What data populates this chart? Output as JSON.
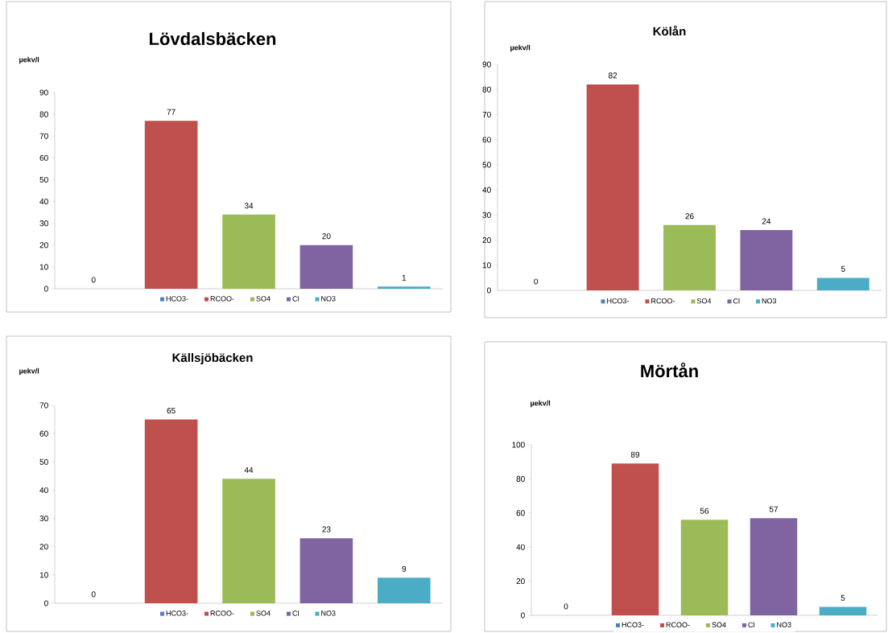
{
  "chart_data": [
    {
      "type": "bar",
      "title": "Lövdalsbäcken",
      "ylabel": "µekv/l",
      "categories": [
        null,
        null,
        null,
        null,
        null
      ],
      "ylim": [
        0,
        90
      ],
      "yticks": [
        0,
        10,
        20,
        30,
        40,
        50,
        60,
        70,
        80,
        90
      ],
      "data_labels": true,
      "legend": "bottom",
      "series": [
        {
          "name": "HCO3-",
          "color": "#4f81bd",
          "values": [
            0,
            null,
            null,
            null,
            null
          ]
        },
        {
          "name": "RCOO-",
          "color": "#c0504d",
          "values": [
            null,
            77,
            null,
            null,
            null
          ]
        },
        {
          "name": "SO4",
          "color": "#9bbb59",
          "values": [
            null,
            null,
            34,
            null,
            null
          ]
        },
        {
          "name": "Cl",
          "color": "#8064a2",
          "values": [
            null,
            null,
            null,
            20,
            null
          ]
        },
        {
          "name": "NO3",
          "color": "#4bacc6",
          "values": [
            null,
            null,
            null,
            null,
            1
          ]
        }
      ]
    },
    {
      "type": "bar",
      "title": "Kölån",
      "ylabel": "µekv/l",
      "categories": [
        null,
        null,
        null,
        null,
        null
      ],
      "ylim": [
        0,
        90
      ],
      "yticks": [
        0,
        10,
        20,
        30,
        40,
        50,
        60,
        70,
        80,
        90
      ],
      "data_labels": true,
      "legend": "bottom",
      "series": [
        {
          "name": "HCO3-",
          "color": "#4f81bd",
          "values": [
            0,
            null,
            null,
            null,
            null
          ]
        },
        {
          "name": "RCOO-",
          "color": "#c0504d",
          "values": [
            null,
            82,
            null,
            null,
            null
          ]
        },
        {
          "name": "SO4",
          "color": "#9bbb59",
          "values": [
            null,
            null,
            26,
            null,
            null
          ]
        },
        {
          "name": "Cl",
          "color": "#8064a2",
          "values": [
            null,
            null,
            null,
            24,
            null
          ]
        },
        {
          "name": "NO3",
          "color": "#4bacc6",
          "values": [
            null,
            null,
            null,
            null,
            5
          ]
        }
      ]
    },
    {
      "type": "bar",
      "title": "Källsjöbäcken",
      "ylabel": "µekv/l",
      "categories": [
        null,
        null,
        null,
        null,
        null
      ],
      "ylim": [
        0,
        70
      ],
      "yticks": [
        0,
        10,
        20,
        30,
        40,
        50,
        60,
        70
      ],
      "data_labels": true,
      "legend": "bottom",
      "series": [
        {
          "name": "HCO3-",
          "color": "#4f81bd",
          "values": [
            0,
            null,
            null,
            null,
            null
          ]
        },
        {
          "name": "RCOO-",
          "color": "#c0504d",
          "values": [
            null,
            65,
            null,
            null,
            null
          ]
        },
        {
          "name": "SO4",
          "color": "#9bbb59",
          "values": [
            null,
            null,
            44,
            null,
            null
          ]
        },
        {
          "name": "Cl",
          "color": "#8064a2",
          "values": [
            null,
            null,
            null,
            23,
            null
          ]
        },
        {
          "name": "NO3",
          "color": "#4bacc6",
          "values": [
            null,
            null,
            null,
            null,
            9
          ]
        }
      ]
    },
    {
      "type": "bar",
      "title": "Mörtån",
      "ylabel": "µekv/l",
      "categories": [
        null,
        null,
        null,
        null,
        null
      ],
      "ylim": [
        0,
        100
      ],
      "yticks": [
        0,
        20,
        40,
        60,
        80,
        100
      ],
      "data_labels": true,
      "legend": "bottom",
      "series": [
        {
          "name": "HCO3-",
          "color": "#4f81bd",
          "values": [
            0,
            null,
            null,
            null,
            null
          ]
        },
        {
          "name": "RCOO-",
          "color": "#c0504d",
          "values": [
            null,
            89,
            null,
            null,
            null
          ]
        },
        {
          "name": "SO4",
          "color": "#9bbb59",
          "values": [
            null,
            null,
            56,
            null,
            null
          ]
        },
        {
          "name": "Cl",
          "color": "#8064a2",
          "values": [
            null,
            null,
            null,
            57,
            null
          ]
        },
        {
          "name": "NO3",
          "color": "#4bacc6",
          "values": [
            null,
            null,
            null,
            null,
            5
          ]
        }
      ]
    }
  ]
}
